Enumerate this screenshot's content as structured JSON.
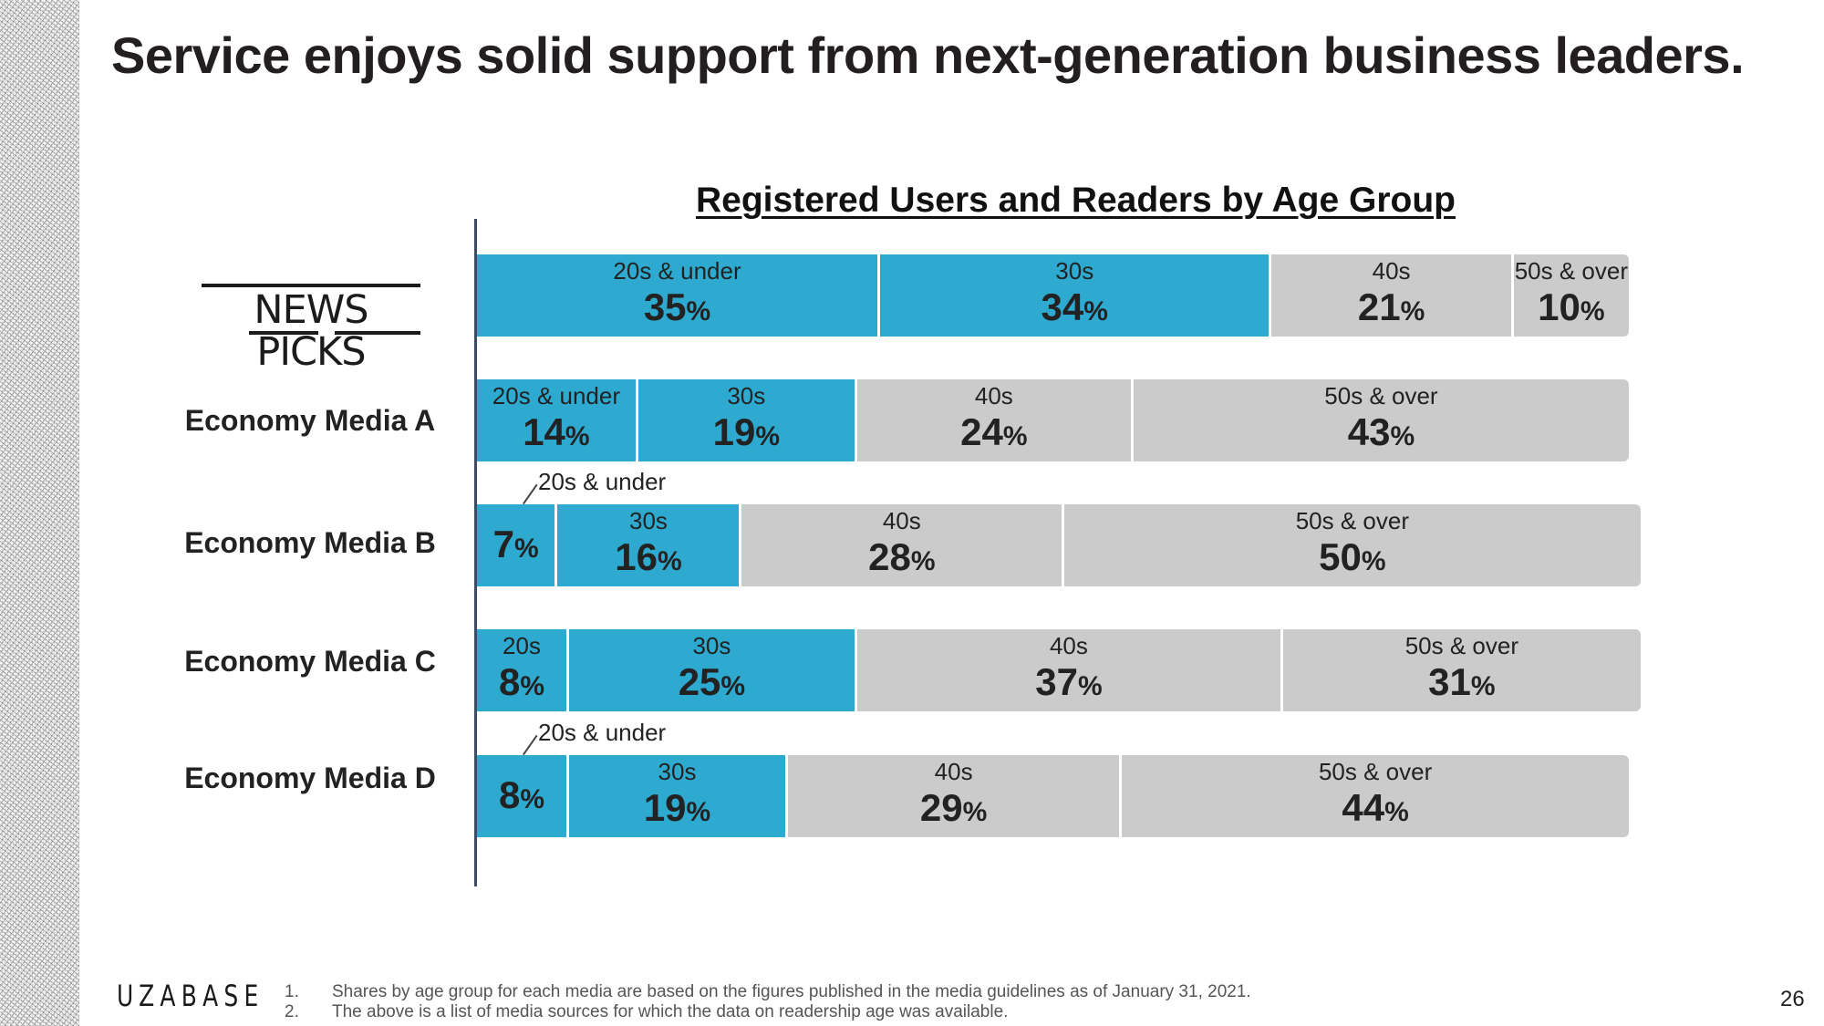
{
  "slide": {
    "title": "Service enjoys solid support from next-generation business leaders.",
    "page_number": "26",
    "footer_logo": "UZABASE",
    "notes": [
      {
        "num": "1.",
        "text": "Shares by age group for each media are based on the figures published in the media guidelines as of January 31, 2021."
      },
      {
        "num": "2.",
        "text": "The above is a list of media sources for which the data on readership age was available."
      }
    ]
  },
  "colors": {
    "young": "#2eaad0",
    "old": "#cbcbcb",
    "axis": "#3d4b63"
  },
  "chart_data": {
    "type": "bar",
    "orientation": "horizontal",
    "stacked": true,
    "title": "Registered Users and Readers by Age Group",
    "xlabel": "",
    "ylabel": "",
    "unit": "%",
    "categories": [
      "NewsPicks",
      "Economy Media A",
      "Economy Media B",
      "Economy Media C",
      "Economy Media D"
    ],
    "logo_text": "NEWS PICKS",
    "series": [
      {
        "name": "20s & under",
        "color": "#2eaad0",
        "values": [
          35,
          14,
          7,
          8,
          8
        ],
        "labels": [
          "20s & under",
          "20s & under",
          "20s & under",
          "20s",
          "20s & under"
        ],
        "label_outside": [
          false,
          false,
          true,
          false,
          true
        ]
      },
      {
        "name": "30s",
        "color": "#2eaad0",
        "values": [
          34,
          19,
          16,
          25,
          19
        ],
        "labels": [
          "30s",
          "30s",
          "30s",
          "30s",
          "30s"
        ]
      },
      {
        "name": "40s",
        "color": "#cbcbcb",
        "values": [
          21,
          24,
          28,
          37,
          29
        ],
        "labels": [
          "40s",
          "40s",
          "40s",
          "40s",
          "40s"
        ]
      },
      {
        "name": "50s & over",
        "color": "#cbcbcb",
        "values": [
          10,
          43,
          50,
          31,
          44
        ],
        "labels": [
          "50s & over",
          "50s & over",
          "50s & over",
          "50s & over",
          "50s & over"
        ]
      }
    ]
  }
}
